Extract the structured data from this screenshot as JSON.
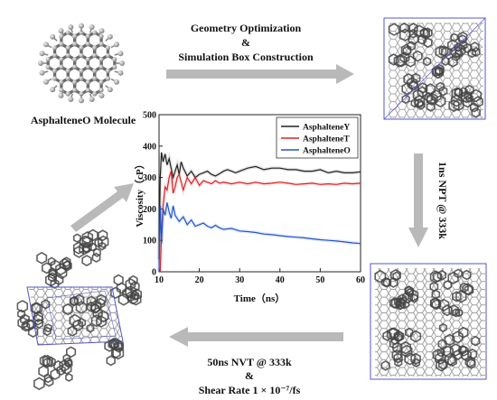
{
  "workflow": {
    "molecule_label": "AsphalteneO Molecule",
    "step1_line1": "Geometry Optimization",
    "step1_line2": "&",
    "step1_line3": "Simulation Box Construction",
    "step2": "1ns NPT @ 333k",
    "step3_line1": "50ns NVT @ 333k",
    "step3_line2": "&",
    "step3_line3": "Shear Rate 1 × 10⁻⁷/fs",
    "arrow_color": "#b9b9b9",
    "box_color": "#5555cc"
  },
  "chart_data": {
    "type": "line",
    "title": "",
    "xlabel": "Time（ns）",
    "ylabel": "Viscosity（cP）",
    "xlim": [
      10,
      60
    ],
    "ylim": [
      0,
      500
    ],
    "xticks": [
      10,
      20,
      30,
      40,
      50,
      60
    ],
    "yticks": [
      0,
      100,
      200,
      300,
      400,
      500
    ],
    "grid": false,
    "legend_position": "top-right",
    "series": [
      {
        "name": "AsphalteneY",
        "color": "#222222",
        "x": [
          10,
          10.3,
          10.6,
          11,
          11.5,
          12,
          12.5,
          13,
          13.5,
          14,
          14.5,
          15,
          15.5,
          16,
          17,
          18,
          19,
          20,
          21,
          22,
          23,
          24,
          25,
          26,
          27,
          28,
          29,
          30,
          32,
          34,
          36,
          38,
          40,
          42,
          44,
          46,
          48,
          50,
          52,
          54,
          56,
          58,
          60
        ],
        "y": [
          40,
          300,
          380,
          350,
          375,
          340,
          360,
          330,
          300,
          320,
          340,
          310,
          350,
          330,
          305,
          320,
          300,
          310,
          315,
          320,
          310,
          305,
          312,
          320,
          325,
          320,
          315,
          320,
          330,
          335,
          325,
          330,
          330,
          325,
          325,
          320,
          320,
          325,
          315,
          320,
          315,
          315,
          318
        ]
      },
      {
        "name": "AsphalteneT",
        "color": "#dd2222",
        "x": [
          10,
          10.3,
          10.6,
          11,
          11.5,
          12,
          12.5,
          13,
          13.5,
          14,
          14.5,
          15,
          16,
          17,
          18,
          19,
          20,
          21,
          22,
          23,
          24,
          25,
          26,
          28,
          30,
          32,
          34,
          36,
          38,
          40,
          42,
          44,
          46,
          48,
          50,
          52,
          54,
          56,
          58,
          60
        ],
        "y": [
          10,
          0,
          120,
          210,
          270,
          260,
          300,
          320,
          250,
          270,
          300,
          310,
          260,
          300,
          280,
          300,
          275,
          290,
          285,
          280,
          290,
          282,
          285,
          280,
          285,
          280,
          285,
          280,
          282,
          285,
          282,
          278,
          280,
          282,
          278,
          280,
          278,
          282,
          280,
          282
        ]
      },
      {
        "name": "AsphalteneO",
        "color": "#2255cc",
        "x": [
          10,
          10.3,
          10.6,
          11,
          11.5,
          12,
          12.5,
          13,
          13.5,
          14,
          15,
          16,
          17,
          18,
          19,
          20,
          21,
          22,
          23,
          24,
          25,
          26,
          28,
          30,
          32,
          34,
          36,
          38,
          40,
          42,
          44,
          46,
          48,
          50,
          52,
          54,
          56,
          58,
          60
        ],
        "y": [
          0,
          210,
          90,
          200,
          180,
          220,
          190,
          170,
          210,
          180,
          160,
          175,
          150,
          165,
          145,
          150,
          155,
          145,
          140,
          148,
          140,
          135,
          138,
          130,
          128,
          125,
          120,
          118,
          115,
          112,
          110,
          108,
          105,
          102,
          100,
          98,
          95,
          92,
          90
        ]
      }
    ]
  }
}
